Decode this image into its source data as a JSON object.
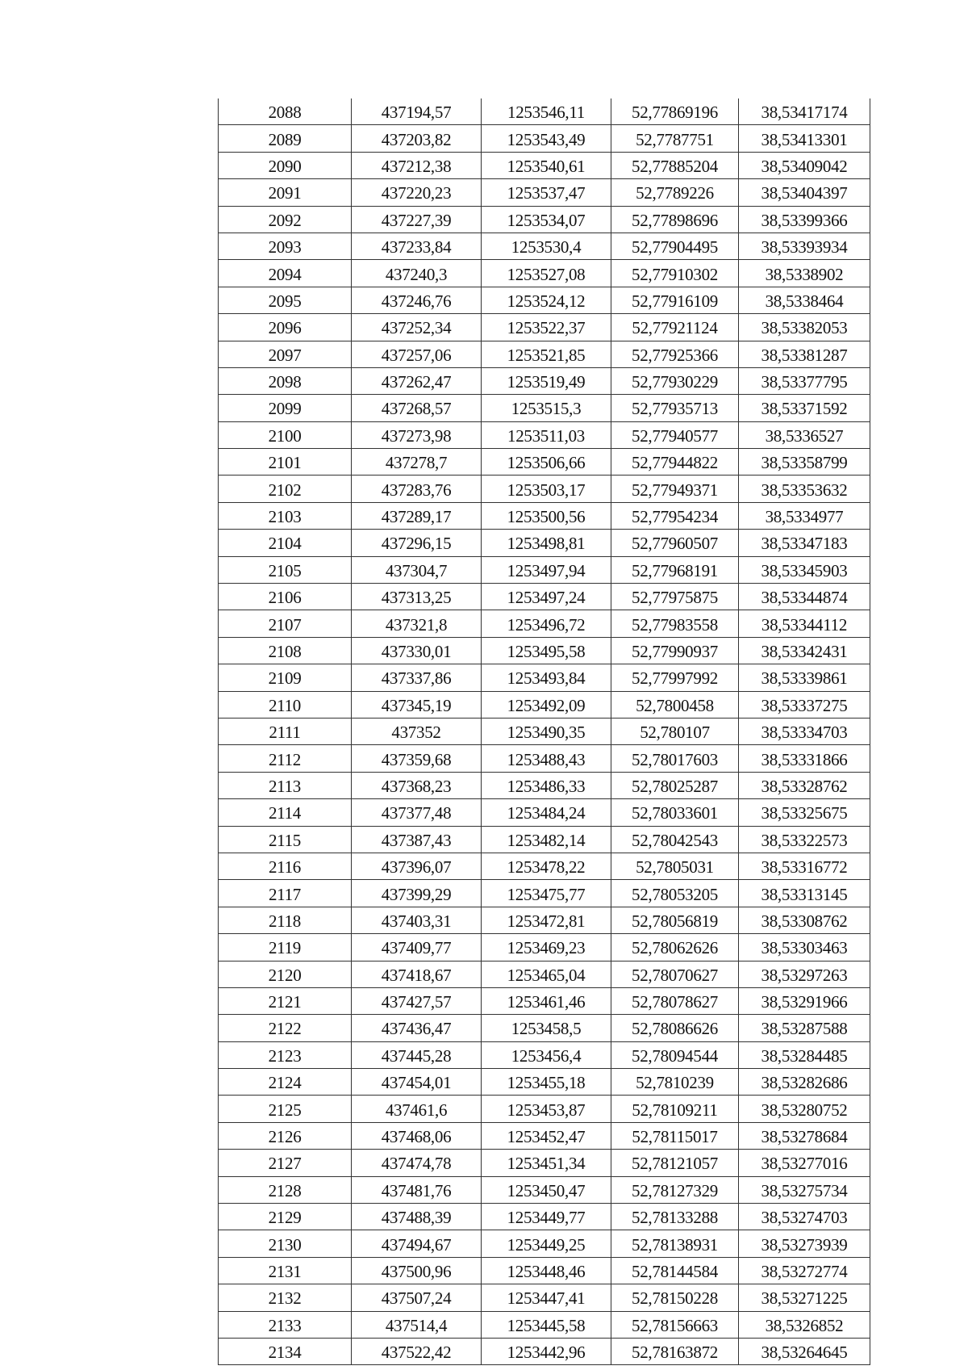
{
  "table": {
    "rows": [
      [
        "2088",
        "437194,57",
        "1253546,11",
        "52,77869196",
        "38,53417174"
      ],
      [
        "2089",
        "437203,82",
        "1253543,49",
        "52,7787751",
        "38,53413301"
      ],
      [
        "2090",
        "437212,38",
        "1253540,61",
        "52,77885204",
        "38,53409042"
      ],
      [
        "2091",
        "437220,23",
        "1253537,47",
        "52,7789226",
        "38,53404397"
      ],
      [
        "2092",
        "437227,39",
        "1253534,07",
        "52,77898696",
        "38,53399366"
      ],
      [
        "2093",
        "437233,84",
        "1253530,4",
        "52,77904495",
        "38,53393934"
      ],
      [
        "2094",
        "437240,3",
        "1253527,08",
        "52,77910302",
        "38,5338902"
      ],
      [
        "2095",
        "437246,76",
        "1253524,12",
        "52,77916109",
        "38,5338464"
      ],
      [
        "2096",
        "437252,34",
        "1253522,37",
        "52,77921124",
        "38,53382053"
      ],
      [
        "2097",
        "437257,06",
        "1253521,85",
        "52,77925366",
        "38,53381287"
      ],
      [
        "2098",
        "437262,47",
        "1253519,49",
        "52,77930229",
        "38,53377795"
      ],
      [
        "2099",
        "437268,57",
        "1253515,3",
        "52,77935713",
        "38,53371592"
      ],
      [
        "2100",
        "437273,98",
        "1253511,03",
        "52,77940577",
        "38,5336527"
      ],
      [
        "2101",
        "437278,7",
        "1253506,66",
        "52,77944822",
        "38,53358799"
      ],
      [
        "2102",
        "437283,76",
        "1253503,17",
        "52,77949371",
        "38,53353632"
      ],
      [
        "2103",
        "437289,17",
        "1253500,56",
        "52,77954234",
        "38,5334977"
      ],
      [
        "2104",
        "437296,15",
        "1253498,81",
        "52,77960507",
        "38,53347183"
      ],
      [
        "2105",
        "437304,7",
        "1253497,94",
        "52,77968191",
        "38,53345903"
      ],
      [
        "2106",
        "437313,25",
        "1253497,24",
        "52,77975875",
        "38,53344874"
      ],
      [
        "2107",
        "437321,8",
        "1253496,72",
        "52,77983558",
        "38,53344112"
      ],
      [
        "2108",
        "437330,01",
        "1253495,58",
        "52,77990937",
        "38,53342431"
      ],
      [
        "2109",
        "437337,86",
        "1253493,84",
        "52,77997992",
        "38,53339861"
      ],
      [
        "2110",
        "437345,19",
        "1253492,09",
        "52,7800458",
        "38,53337275"
      ],
      [
        "2111",
        "437352",
        "1253490,35",
        "52,780107",
        "38,53334703"
      ],
      [
        "2112",
        "437359,68",
        "1253488,43",
        "52,78017603",
        "38,53331866"
      ],
      [
        "2113",
        "437368,23",
        "1253486,33",
        "52,78025287",
        "38,53328762"
      ],
      [
        "2114",
        "437377,48",
        "1253484,24",
        "52,78033601",
        "38,53325675"
      ],
      [
        "2115",
        "437387,43",
        "1253482,14",
        "52,78042543",
        "38,53322573"
      ],
      [
        "2116",
        "437396,07",
        "1253478,22",
        "52,7805031",
        "38,53316772"
      ],
      [
        "2117",
        "437399,29",
        "1253475,77",
        "52,78053205",
        "38,53313145"
      ],
      [
        "2118",
        "437403,31",
        "1253472,81",
        "52,78056819",
        "38,53308762"
      ],
      [
        "2119",
        "437409,77",
        "1253469,23",
        "52,78062626",
        "38,53303463"
      ],
      [
        "2120",
        "437418,67",
        "1253465,04",
        "52,78070627",
        "38,53297263"
      ],
      [
        "2121",
        "437427,57",
        "1253461,46",
        "52,78078627",
        "38,53291966"
      ],
      [
        "2122",
        "437436,47",
        "1253458,5",
        "52,78086626",
        "38,53287588"
      ],
      [
        "2123",
        "437445,28",
        "1253456,4",
        "52,78094544",
        "38,53284485"
      ],
      [
        "2124",
        "437454,01",
        "1253455,18",
        "52,7810239",
        "38,53282686"
      ],
      [
        "2125",
        "437461,6",
        "1253453,87",
        "52,78109211",
        "38,53280752"
      ],
      [
        "2126",
        "437468,06",
        "1253452,47",
        "52,78115017",
        "38,53278684"
      ],
      [
        "2127",
        "437474,78",
        "1253451,34",
        "52,78121057",
        "38,53277016"
      ],
      [
        "2128",
        "437481,76",
        "1253450,47",
        "52,78127329",
        "38,53275734"
      ],
      [
        "2129",
        "437488,39",
        "1253449,77",
        "52,78133288",
        "38,53274703"
      ],
      [
        "2130",
        "437494,67",
        "1253449,25",
        "52,78138931",
        "38,53273939"
      ],
      [
        "2131",
        "437500,96",
        "1253448,46",
        "52,78144584",
        "38,53272774"
      ],
      [
        "2132",
        "437507,24",
        "1253447,41",
        "52,78150228",
        "38,53271225"
      ],
      [
        "2133",
        "437514,4",
        "1253445,58",
        "52,78156663",
        "38,5326852"
      ],
      [
        "2134",
        "437522,42",
        "1253442,96",
        "52,78163872",
        "38,53264645"
      ]
    ]
  }
}
